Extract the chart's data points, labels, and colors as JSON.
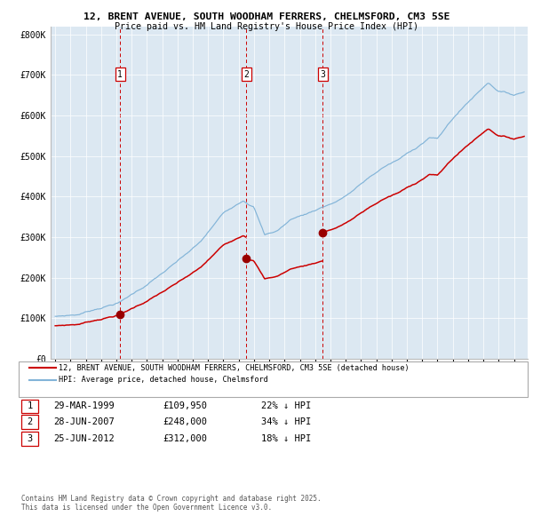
{
  "title_line1": "12, BRENT AVENUE, SOUTH WOODHAM FERRERS, CHELMSFORD, CM3 5SE",
  "title_line2": "Price paid vs. HM Land Registry's House Price Index (HPI)",
  "plot_bg_color": "#dce8f2",
  "hpi_color": "#82b4d8",
  "price_color": "#cc0000",
  "sale_marker_color": "#990000",
  "vline_color": "#cc0000",
  "ylabel_ticks": [
    "£0",
    "£100K",
    "£200K",
    "£300K",
    "£400K",
    "£500K",
    "£600K",
    "£700K",
    "£800K"
  ],
  "ytick_values": [
    0,
    100000,
    200000,
    300000,
    400000,
    500000,
    600000,
    700000,
    800000
  ],
  "ylim": [
    0,
    820000
  ],
  "xlim_start": 1994.7,
  "xlim_end": 2025.9,
  "sale_dates": [
    1999.24,
    2007.49,
    2012.49
  ],
  "sale_prices": [
    109950,
    248000,
    312000
  ],
  "sale_labels": [
    "1",
    "2",
    "3"
  ],
  "sale_date_strs": [
    "29-MAR-1999",
    "28-JUN-2007",
    "25-JUN-2012"
  ],
  "sale_price_strs": [
    "£109,950",
    "£248,000",
    "£312,000"
  ],
  "sale_pct_strs": [
    "22% ↓ HPI",
    "34% ↓ HPI",
    "18% ↓ HPI"
  ],
  "legend_line1": "12, BRENT AVENUE, SOUTH WOODHAM FERRERS, CHELMSFORD, CM3 5SE (detached house)",
  "legend_line2": "HPI: Average price, detached house, Chelmsford",
  "footer_line1": "Contains HM Land Registry data © Crown copyright and database right 2025.",
  "footer_line2": "This data is licensed under the Open Government Licence v3.0."
}
